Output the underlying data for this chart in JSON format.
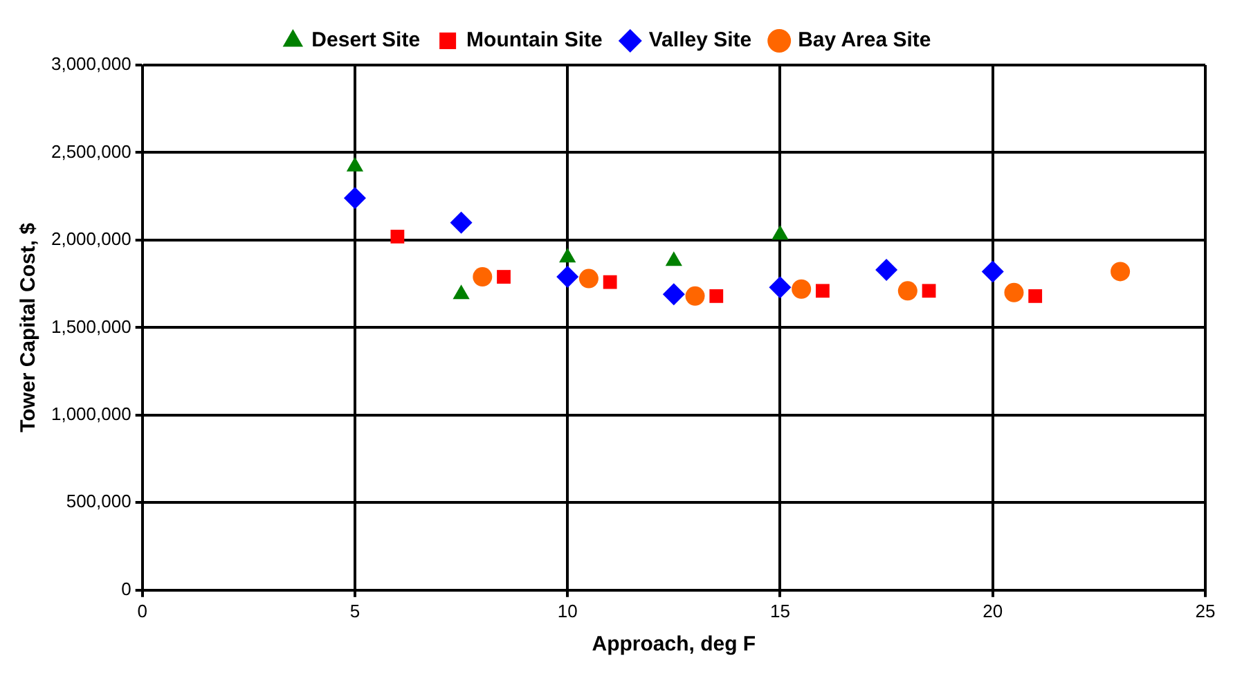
{
  "chart_data": {
    "type": "scatter",
    "xlabel": "Approach, deg F",
    "ylabel": "Tower Capital Cost, $",
    "xlim": [
      0,
      25
    ],
    "xticks": [
      0,
      5,
      10,
      15,
      20,
      25
    ],
    "ylim": [
      0,
      3000000
    ],
    "yticks": [
      {
        "value": 0,
        "label": "0"
      },
      {
        "value": 500000,
        "label": "500,000"
      },
      {
        "value": 1000000,
        "label": "1,000,000"
      },
      {
        "value": 1500000,
        "label": "1,500,000"
      },
      {
        "value": 2000000,
        "label": "2,000,000"
      },
      {
        "value": 2500000,
        "label": "2,500,000"
      },
      {
        "value": 3000000,
        "label": "3,000,000"
      }
    ],
    "grid": true,
    "legend": "top",
    "series": [
      {
        "name": "Desert Site",
        "color": "#008000",
        "marker": "triangle",
        "x": [
          5,
          7.5,
          10,
          12.5,
          15
        ],
        "values": [
          2420000,
          1690000,
          1900000,
          1880000,
          2030000
        ]
      },
      {
        "name": "Mountain Site",
        "color": "#ff0000",
        "marker": "square",
        "x": [
          6,
          8.5,
          11,
          13.5,
          16,
          18.5,
          21
        ],
        "values": [
          2020000,
          1790000,
          1760000,
          1680000,
          1710000,
          1710000,
          1680000
        ]
      },
      {
        "name": "Valley Site",
        "color": "#0000ff",
        "marker": "diamond",
        "x": [
          5,
          7.5,
          10,
          12.5,
          15,
          17.5,
          20
        ],
        "values": [
          2240000,
          2100000,
          1790000,
          1690000,
          1730000,
          1830000,
          1820000
        ]
      },
      {
        "name": "Bay Area Site",
        "color": "#ff6600",
        "marker": "circle",
        "x": [
          8,
          10.5,
          13,
          15.5,
          18,
          20.5,
          23
        ],
        "values": [
          1790000,
          1780000,
          1680000,
          1720000,
          1710000,
          1700000,
          1820000
        ]
      }
    ]
  }
}
